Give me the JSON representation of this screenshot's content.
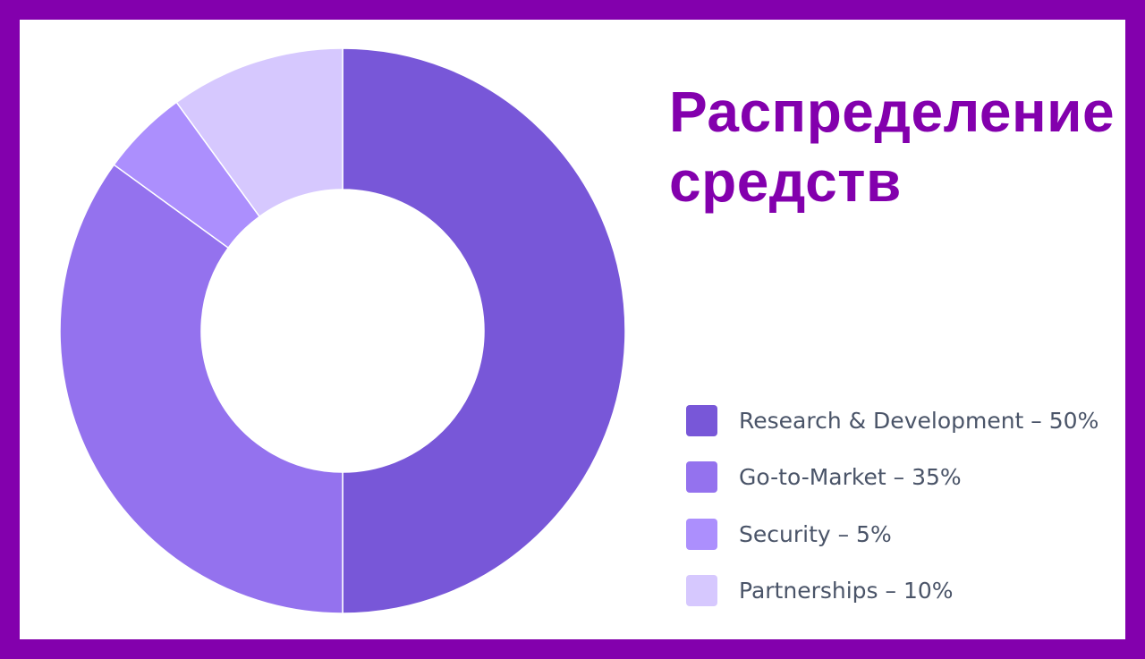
{
  "title": "Распределение\nсредств",
  "chart_data": {
    "type": "pie",
    "title": "Распределение\nсредств",
    "categories": [
      "Research & Development",
      "Go-to-Market",
      "Security",
      "Partnerships"
    ],
    "values": [
      50,
      35,
      5,
      10
    ],
    "unit": "%",
    "colors": [
      "#7857d8",
      "#9472ee",
      "#ac8ffd",
      "#d6c8fe"
    ],
    "legend": [
      "Research & Development – 50%",
      "Go-to-Market – 35%",
      "Security – 5%",
      "Partnerships – 10%"
    ],
    "legend_position": "bottom-right",
    "donut": true
  }
}
